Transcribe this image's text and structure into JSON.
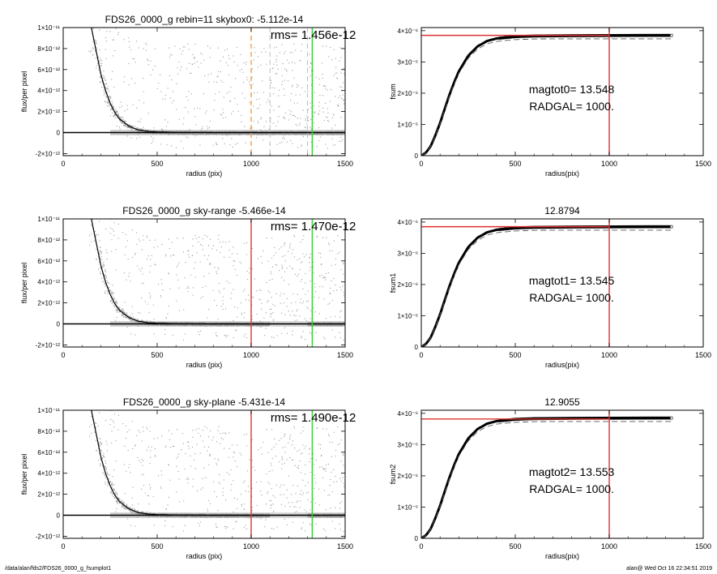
{
  "footer": {
    "path": "/data/alan/fds2/FDS26_0000_g_fsumplot1",
    "stamp": "alan@  Wed Oct 16 22:34:51 2019"
  },
  "colors": {
    "profile_points": "#9a9a9a",
    "red": "#e03030",
    "green": "#30d030",
    "orange": "#f0a040",
    "gray_vline": "#b0b0b0"
  },
  "chart_data": [
    {
      "type": "scatter",
      "title": "FDS26_0000_g rebin=11    skybox0: -5.112e-14",
      "annotation": "rms= 1.456e-12",
      "xlabel": "radius (pix)",
      "ylabel": "flux/per pixel",
      "xlim": [
        0,
        1500
      ],
      "ylim": [
        -2.2e-12,
        1e-11
      ],
      "xticks": [
        0,
        500,
        1000,
        1500
      ],
      "xticklabels": [
        "0",
        "500",
        "1000",
        "1500"
      ],
      "yticks": [
        -2e-12,
        0,
        2e-12,
        4e-12,
        6e-12,
        8e-12,
        1e-11
      ],
      "yticklabels": [
        "-2×10⁻¹²",
        "0",
        "2×10⁻¹²",
        "4×10⁻¹²",
        "6×10⁻¹²",
        "8×10⁻¹²",
        "1×10⁻¹¹"
      ],
      "profile": {
        "x": [
          150,
          175,
          200,
          225,
          250,
          275,
          300,
          350,
          400,
          450,
          500,
          600,
          800,
          1000,
          1200,
          1300
        ],
        "y": [
          1e-11,
          7.8e-12,
          5.6e-12,
          4e-12,
          2.8e-12,
          1.9e-12,
          1.3e-12,
          6e-13,
          2.5e-13,
          1.2e-13,
          6e-14,
          2e-14,
          0,
          0,
          0,
          0
        ]
      },
      "vlines": [
        {
          "x": 1000,
          "color": "orange",
          "style": "dashed"
        },
        {
          "x": 1100,
          "color": "gray",
          "style": "dashed"
        },
        {
          "x": 1300,
          "color": "gray",
          "style": "dashed"
        },
        {
          "x": 1325,
          "color": "green",
          "style": "solid"
        }
      ],
      "hlines": []
    },
    {
      "type": "line",
      "title": "",
      "annotation": "magtot0=  13.548",
      "annotation2": "RADGAL=   1000.",
      "xlabel": "radius(pix)",
      "ylabel": "fsum",
      "xlim": [
        0,
        1500
      ],
      "ylim": [
        0,
        4.1e-06
      ],
      "xticks": [
        0,
        500,
        1000,
        1500
      ],
      "xticklabels": [
        "0",
        "500",
        "1000",
        "1500"
      ],
      "yticks": [
        0,
        1e-06,
        2e-06,
        3e-06,
        4e-06
      ],
      "yticklabels": [
        "0",
        "1×10⁻⁶",
        "2×10⁻⁶",
        "3×10⁻⁶",
        "4×10⁻⁶"
      ],
      "curve": {
        "x": [
          0,
          25,
          50,
          75,
          100,
          125,
          150,
          175,
          200,
          250,
          300,
          350,
          400,
          500,
          600,
          800,
          1000,
          1200,
          1330
        ],
        "y": [
          0,
          1e-07,
          3e-07,
          6.5e-07,
          1.05e-06,
          1.5e-06,
          1.95e-06,
          2.35e-06,
          2.7e-06,
          3.2e-06,
          3.5e-06,
          3.67e-06,
          3.75e-06,
          3.81e-06,
          3.83e-06,
          3.84e-06,
          3.845e-06,
          3.85e-06,
          3.85e-06
        ]
      },
      "dashed_level": 3.74e-06,
      "hline": 3.85e-06,
      "vline": 1000
    },
    {
      "type": "scatter",
      "title": "FDS26_0000_g sky-range -5.466e-14",
      "annotation": "rms= 1.470e-12",
      "xlabel": "radius (pix)",
      "ylabel": "flux/per pixel",
      "xlim": [
        0,
        1500
      ],
      "ylim": [
        -2.2e-12,
        1e-11
      ],
      "xticks": [
        0,
        500,
        1000,
        1500
      ],
      "xticklabels": [
        "0",
        "500",
        "1000",
        "1500"
      ],
      "yticks": [
        -2e-12,
        0,
        2e-12,
        4e-12,
        6e-12,
        8e-12,
        1e-11
      ],
      "yticklabels": [
        "-2×10⁻¹²",
        "0",
        "2×10⁻¹²",
        "4×10⁻¹²",
        "6×10⁻¹²",
        "8×10⁻¹²",
        "1×10⁻¹¹"
      ],
      "profile": {
        "x": [
          150,
          175,
          200,
          225,
          250,
          275,
          300,
          350,
          400,
          450,
          500,
          600,
          800,
          1000,
          1200,
          1300
        ],
        "y": [
          1e-11,
          7.8e-12,
          5.6e-12,
          4e-12,
          2.8e-12,
          1.9e-12,
          1.3e-12,
          6e-13,
          2.5e-13,
          1.2e-13,
          6e-14,
          2e-14,
          0,
          0,
          0,
          0
        ]
      },
      "vlines": [
        {
          "x": 1000,
          "color": "red",
          "style": "solid"
        },
        {
          "x": 1325,
          "color": "green",
          "style": "solid"
        }
      ],
      "band": [
        1100,
        1300
      ]
    },
    {
      "type": "line",
      "title": "12.8794",
      "annotation": "magtot1=  13.545",
      "annotation2": "RADGAL=   1000.",
      "xlabel": "radius(pix)",
      "ylabel": "fsum1",
      "xlim": [
        0,
        1500
      ],
      "ylim": [
        0,
        4.1e-06
      ],
      "xticks": [
        0,
        500,
        1000,
        1500
      ],
      "xticklabels": [
        "0",
        "500",
        "1000",
        "1500"
      ],
      "yticks": [
        0,
        1e-06,
        2e-06,
        3e-06,
        4e-06
      ],
      "yticklabels": [
        "0",
        "1×10⁻⁶",
        "2×10⁻⁶",
        "3×10⁻⁶",
        "4×10⁻⁶"
      ],
      "curve": {
        "x": [
          0,
          25,
          50,
          75,
          100,
          125,
          150,
          175,
          200,
          250,
          300,
          350,
          400,
          500,
          600,
          800,
          1000,
          1200,
          1330
        ],
        "y": [
          0,
          1e-07,
          3e-07,
          6.5e-07,
          1.05e-06,
          1.5e-06,
          1.95e-06,
          2.35e-06,
          2.7e-06,
          3.2e-06,
          3.5e-06,
          3.67e-06,
          3.75e-06,
          3.81e-06,
          3.83e-06,
          3.84e-06,
          3.845e-06,
          3.85e-06,
          3.85e-06
        ]
      },
      "dashed_level": 3.74e-06,
      "hline": 3.85e-06,
      "vline": 1000
    },
    {
      "type": "scatter",
      "title": "FDS26_0000_g sky-plane -5.431e-14",
      "annotation": "rms= 1.490e-12",
      "xlabel": "radius (pix)",
      "ylabel": "flux/per pixel",
      "xlim": [
        0,
        1500
      ],
      "ylim": [
        -2.2e-12,
        1e-11
      ],
      "xticks": [
        0,
        500,
        1000,
        1500
      ],
      "xticklabels": [
        "0",
        "500",
        "1000",
        "1500"
      ],
      "yticks": [
        -2e-12,
        0,
        2e-12,
        4e-12,
        6e-12,
        8e-12,
        1e-11
      ],
      "yticklabels": [
        "-2×10⁻¹²",
        "0",
        "2×10⁻¹²",
        "4×10⁻¹²",
        "6×10⁻¹²",
        "8×10⁻¹²",
        "1×10⁻¹¹"
      ],
      "profile": {
        "x": [
          150,
          175,
          200,
          225,
          250,
          275,
          300,
          350,
          400,
          450,
          500,
          600,
          800,
          1000,
          1200,
          1300
        ],
        "y": [
          1e-11,
          7.8e-12,
          5.6e-12,
          4e-12,
          2.8e-12,
          1.9e-12,
          1.3e-12,
          6e-13,
          2.5e-13,
          1.2e-13,
          6e-14,
          2e-14,
          0,
          0,
          0,
          0
        ]
      },
      "vlines": [
        {
          "x": 1000,
          "color": "red",
          "style": "solid"
        },
        {
          "x": 1325,
          "color": "green",
          "style": "solid"
        }
      ],
      "band": [
        1100,
        1300
      ]
    },
    {
      "type": "line",
      "title": "12.9055",
      "annotation": "magtot2=  13.553",
      "annotation2": "RADGAL=   1000.",
      "xlabel": "radius(pix)",
      "ylabel": "fsum2",
      "xlim": [
        0,
        1500
      ],
      "ylim": [
        0,
        4.1e-06
      ],
      "xticks": [
        0,
        500,
        1000,
        1500
      ],
      "xticklabels": [
        "0",
        "500",
        "1000",
        "1500"
      ],
      "yticks": [
        0,
        1e-06,
        2e-06,
        3e-06,
        4e-06
      ],
      "yticklabels": [
        "0",
        "1×10⁻⁶",
        "2×10⁻⁶",
        "3×10⁻⁶",
        "4×10⁻⁶"
      ],
      "curve": {
        "x": [
          0,
          25,
          50,
          75,
          100,
          125,
          150,
          175,
          200,
          250,
          300,
          350,
          400,
          500,
          600,
          800,
          1000,
          1200,
          1330
        ],
        "y": [
          0,
          1e-07,
          3e-07,
          6.5e-07,
          1.05e-06,
          1.5e-06,
          1.95e-06,
          2.35e-06,
          2.7e-06,
          3.2e-06,
          3.5e-06,
          3.67e-06,
          3.75e-06,
          3.81e-06,
          3.83e-06,
          3.84e-06,
          3.845e-06,
          3.85e-06,
          3.85e-06
        ]
      },
      "dashed_level": 3.74e-06,
      "hline": 3.82e-06,
      "vline": 1000
    }
  ]
}
